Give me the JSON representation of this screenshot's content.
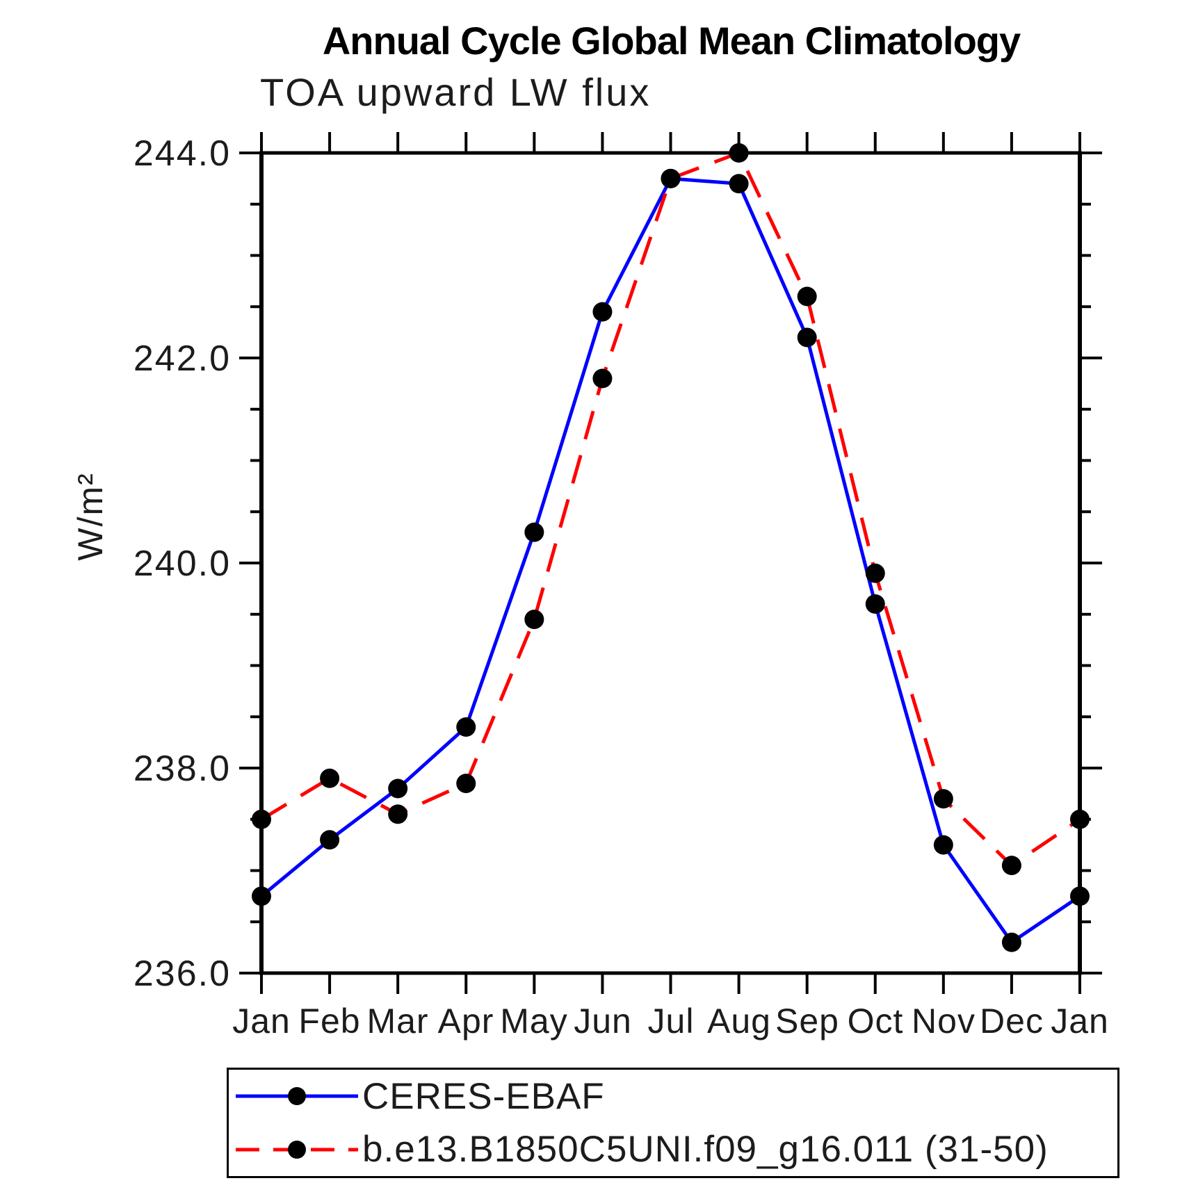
{
  "chart_data": {
    "type": "line",
    "title": "Annual Cycle Global Mean Climatology",
    "subtitle": "TOA upward LW flux",
    "ylabel": "W/m²",
    "categories": [
      "Jan",
      "Feb",
      "Mar",
      "Apr",
      "May",
      "Jun",
      "Jul",
      "Aug",
      "Sep",
      "Oct",
      "Nov",
      "Dec",
      "Jan"
    ],
    "y_tick_labels": [
      "244.0",
      "242.0",
      "240.0",
      "238.0",
      "236.0"
    ],
    "ylim": [
      236.0,
      244.0
    ],
    "y_major_step": 2.0,
    "y_minor_step": 0.5,
    "grid": "off",
    "legend_position": "bottom-left-box",
    "axis_color": "#000000",
    "marker_color": "#000000",
    "series": [
      {
        "name": "CERES-EBAF",
        "color": "#0000ff",
        "line_style": "solid",
        "marker": "filled-circle",
        "values": [
          236.75,
          237.3,
          237.8,
          238.4,
          240.3,
          242.45,
          243.75,
          243.7,
          242.2,
          239.6,
          237.25,
          236.3,
          236.75
        ]
      },
      {
        "name": "b.e13.B1850C5UNI.f09_g16.011 (31-50)",
        "color": "#ff0000",
        "line_style": "dashed",
        "marker": "filled-circle",
        "values": [
          237.5,
          237.9,
          237.55,
          237.85,
          239.45,
          241.8,
          243.75,
          244.0,
          242.6,
          239.9,
          237.7,
          237.05,
          237.5
        ]
      }
    ]
  }
}
